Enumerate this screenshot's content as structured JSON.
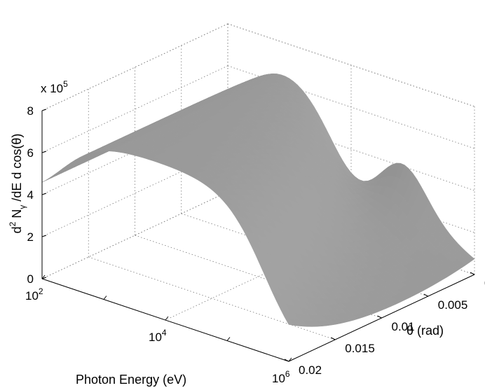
{
  "chart_data": {
    "type": "surface",
    "title": "",
    "xlabel": "Photon Energy (eV)",
    "ylabel": "θ (rad)",
    "zlabel": "d² N_γ /dE d cos(θ)",
    "x_scale": "log",
    "xlim": [
      100,
      1000000
    ],
    "ylim": [
      0,
      0.02
    ],
    "zlim": [
      0,
      800000
    ],
    "z_multiplier": "x 10",
    "z_multiplier_exponent": "5",
    "x_ticks": [
      {
        "base": "10",
        "exp": "2",
        "value": 100
      },
      {
        "base": "10",
        "exp": "4",
        "value": 10000
      },
      {
        "base": "10",
        "exp": "6",
        "value": 1000000
      }
    ],
    "y_ticks": [
      "0",
      "0.005",
      "0.01",
      "0.015",
      "0.02"
    ],
    "z_ticks": [
      "0",
      "2",
      "4",
      "6",
      "8"
    ],
    "grid": true,
    "surface_color": "#9a9a9a",
    "x": [
      100,
      1000,
      10000,
      100000,
      1000000
    ],
    "theta": [
      0,
      0.005,
      0.01,
      0.015,
      0.02
    ],
    "z_at_theta0": [
      380000,
      750000,
      500000,
      20000,
      0
    ],
    "peak_energy_at_theta0": 700,
    "peak_energy_at_theta002": 50000,
    "tail_ridge_value_at_theta0": 130000
  }
}
